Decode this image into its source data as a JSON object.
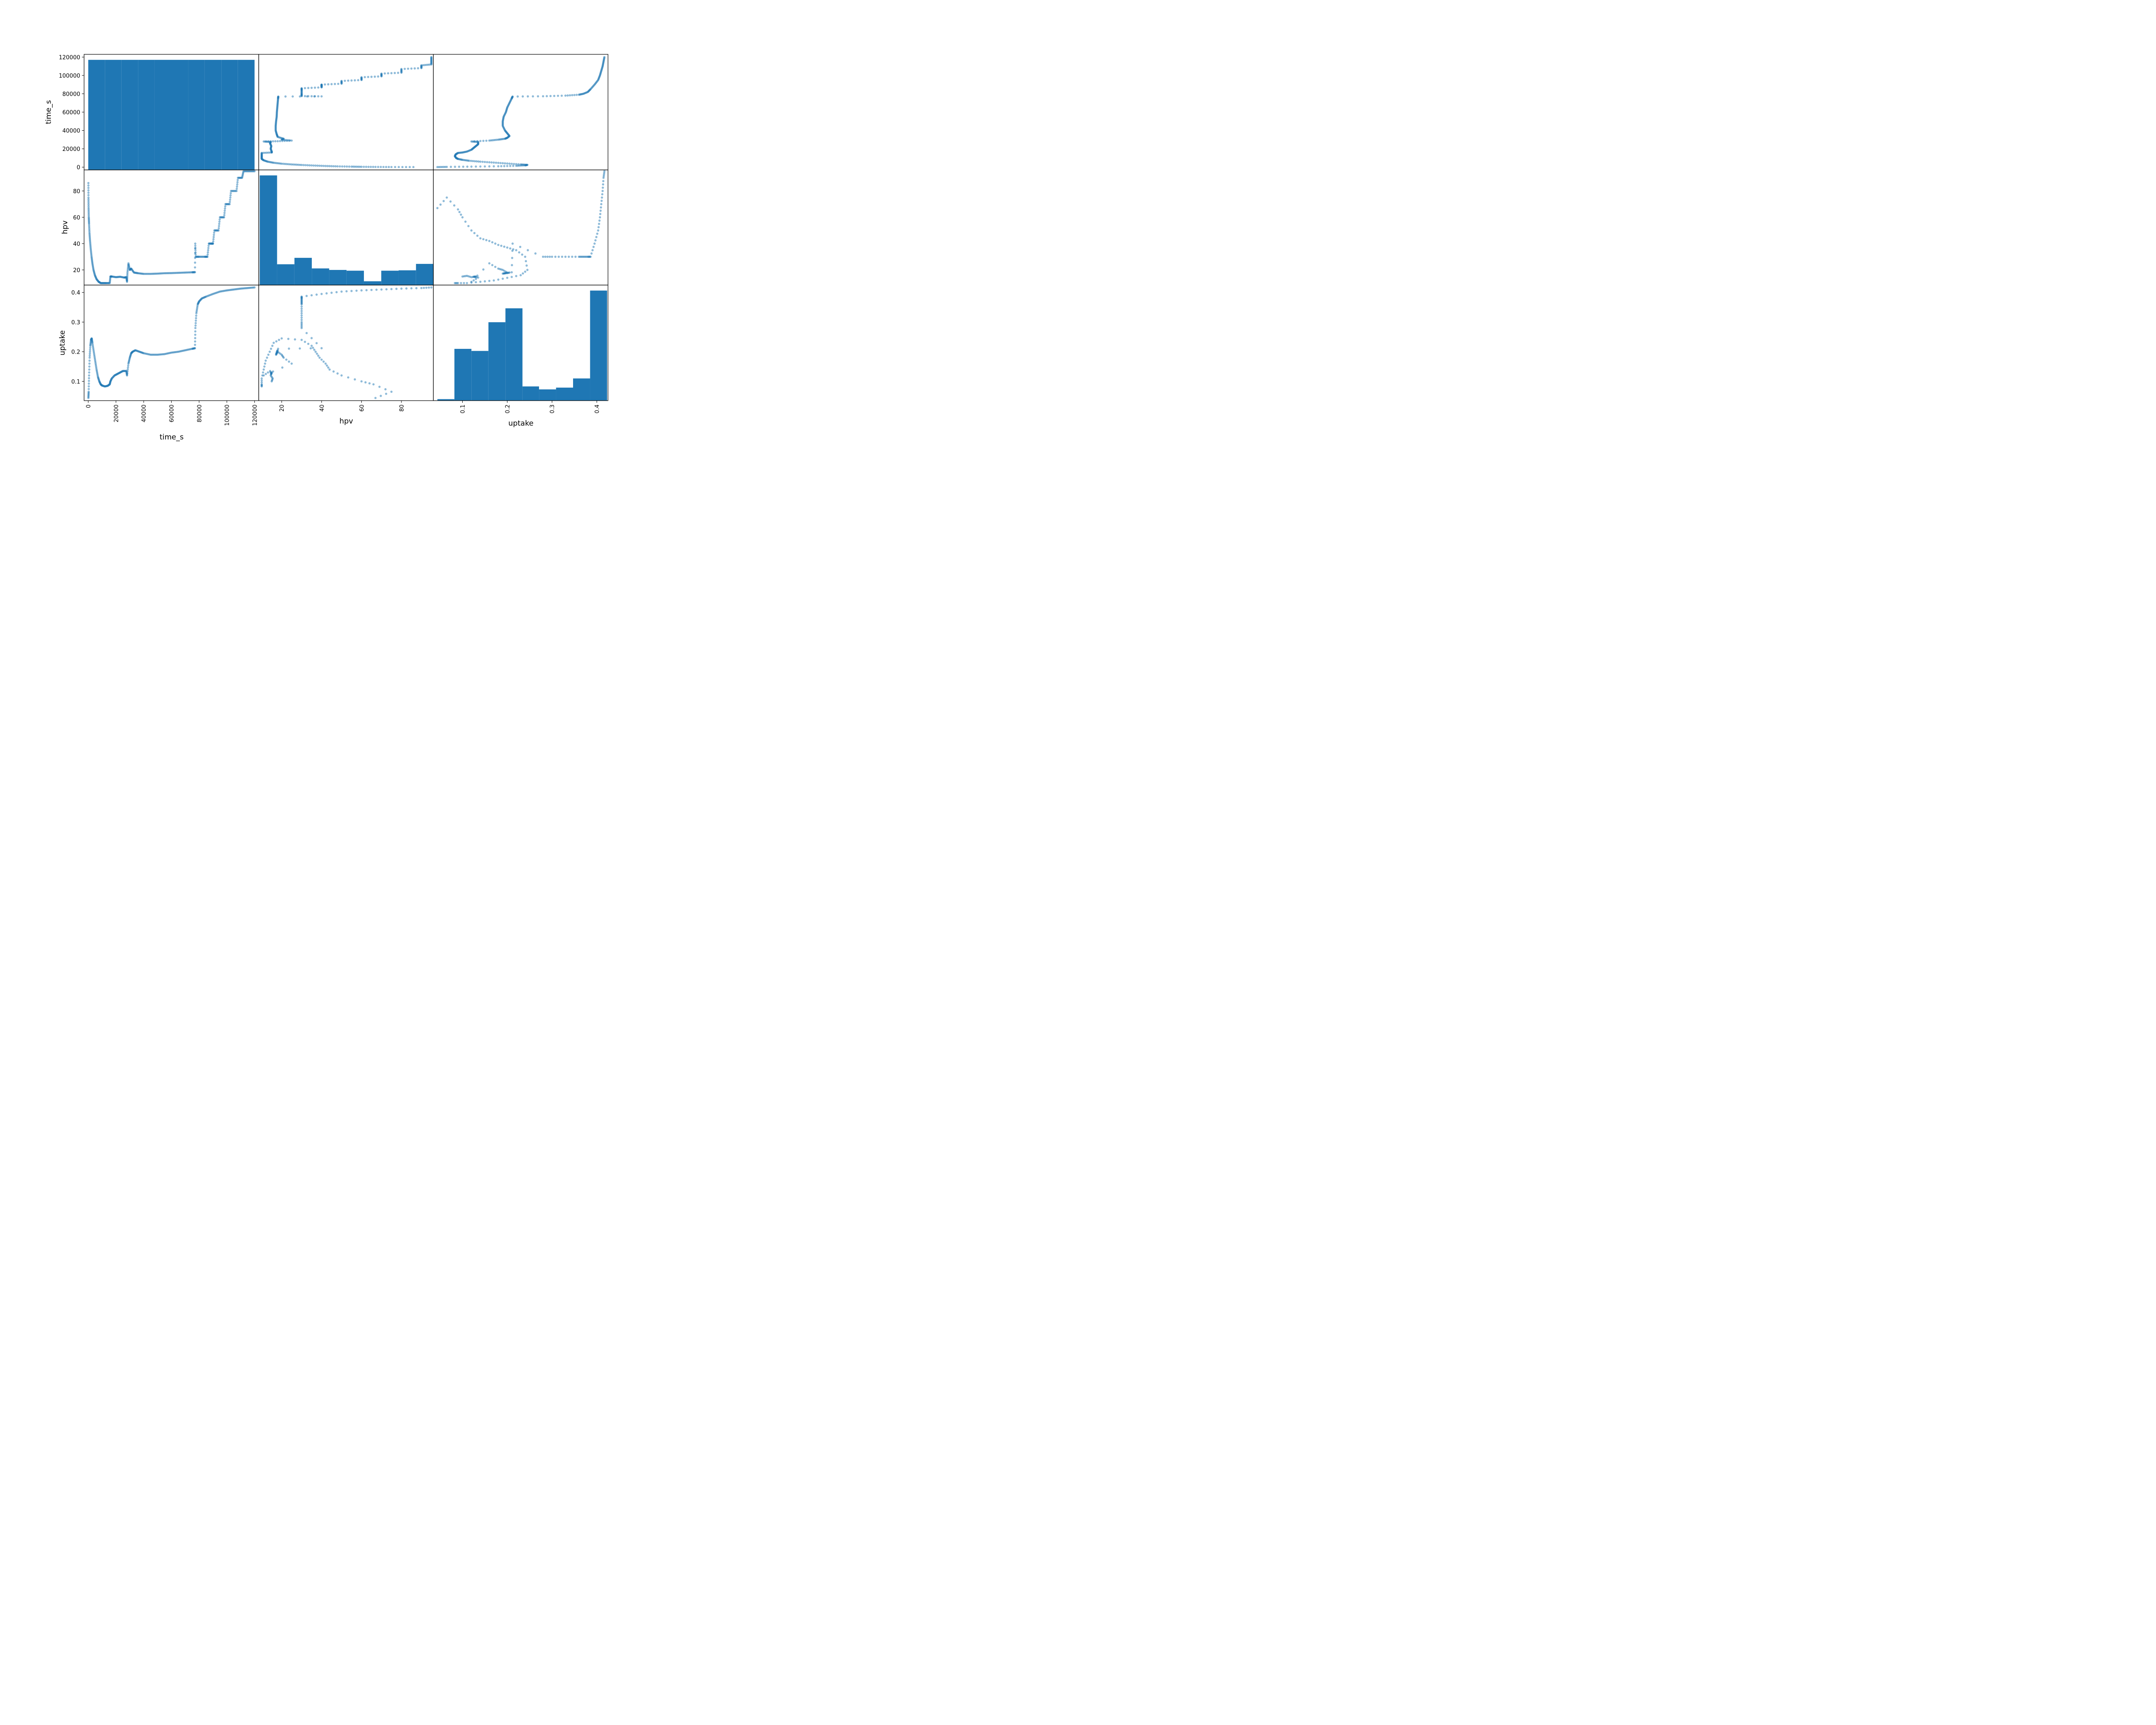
{
  "chart_data": {
    "type": "scatter",
    "kind": "scatter_matrix",
    "variables": [
      "time_s",
      "hpv",
      "uptake"
    ],
    "color": "#1f77b4",
    "point_alpha": 0.5,
    "grid": false,
    "axis_ranges": {
      "time_s": [
        -3000,
        123000
      ],
      "hpv": [
        8.5,
        96
      ],
      "uptake": [
        0.035,
        0.425
      ]
    },
    "ticks": {
      "time_s": {
        "values": [
          0,
          20000,
          40000,
          60000,
          80000,
          100000,
          120000
        ],
        "labels": [
          "0",
          "20000",
          "40000",
          "60000",
          "80000",
          "100000",
          "120000"
        ]
      },
      "hpv": {
        "values": [
          20,
          40,
          60,
          80
        ],
        "labels": [
          "20",
          "40",
          "60",
          "80"
        ]
      },
      "uptake": {
        "values": [
          0.1,
          0.2,
          0.3,
          0.4
        ],
        "labels": [
          "0.1",
          "0.2",
          "0.3",
          "0.4"
        ]
      }
    },
    "histograms": {
      "time_s": {
        "edges": [
          0,
          12000,
          24000,
          36000,
          48000,
          60000,
          72000,
          84000,
          96000,
          108000,
          120000
        ],
        "counts": [
          1000,
          1000,
          1000,
          1000,
          1000,
          1000,
          1000,
          1000,
          1000,
          1000
        ]
      },
      "hpv": {
        "edges": [
          9,
          17.7,
          26.4,
          35.1,
          43.8,
          52.5,
          61.2,
          69.9,
          78.6,
          87.3,
          96
        ],
        "counts": [
          2900,
          550,
          720,
          440,
          400,
          380,
          100,
          380,
          390,
          560
        ]
      },
      "uptake": {
        "edges": [
          0.044,
          0.082,
          0.12,
          0.158,
          0.196,
          0.234,
          0.271,
          0.309,
          0.347,
          0.385,
          0.423
        ],
        "counts": [
          5,
          175,
          168,
          265,
          312,
          48,
          38,
          44,
          75,
          372
        ]
      }
    },
    "curves": {
      "time_vs_hpv": [
        [
          100,
          86
        ],
        [
          150,
          75
        ],
        [
          250,
          67
        ],
        [
          400,
          60
        ],
        [
          600,
          55
        ],
        [
          900,
          48
        ],
        [
          1300,
          42
        ],
        [
          1800,
          36
        ],
        [
          2400,
          30
        ],
        [
          3000,
          25
        ],
        [
          3800,
          20
        ],
        [
          4800,
          16
        ],
        [
          6000,
          13
        ],
        [
          7500,
          11
        ],
        [
          9000,
          10
        ],
        [
          11000,
          10
        ],
        [
          13000,
          10
        ],
        [
          15500,
          10
        ],
        [
          16000,
          15
        ],
        [
          17000,
          15
        ],
        [
          20000,
          14.5
        ],
        [
          23000,
          14.8
        ],
        [
          26000,
          14.2
        ],
        [
          27500,
          14.5
        ],
        [
          28000,
          11
        ],
        [
          28300,
          18
        ],
        [
          29000,
          25
        ],
        [
          30000,
          20
        ],
        [
          31000,
          21
        ],
        [
          33000,
          18
        ],
        [
          36000,
          17.5
        ],
        [
          40000,
          17
        ],
        [
          45000,
          17
        ],
        [
          50000,
          17.2
        ],
        [
          55000,
          17.5
        ],
        [
          60000,
          17.6
        ],
        [
          65000,
          17.8
        ],
        [
          70000,
          18
        ],
        [
          75000,
          18.2
        ],
        [
          77000,
          18.3
        ],
        [
          77200,
          40
        ],
        [
          77500,
          30
        ],
        [
          80000,
          30
        ],
        [
          84000,
          30
        ],
        [
          86000,
          30
        ],
        [
          87000,
          40
        ],
        [
          89000,
          40
        ],
        [
          90000,
          40
        ],
        [
          91000,
          50
        ],
        [
          94000,
          50
        ],
        [
          95000,
          60
        ],
        [
          98000,
          60
        ],
        [
          99000,
          70
        ],
        [
          102000,
          70
        ],
        [
          103000,
          80
        ],
        [
          107000,
          80
        ],
        [
          108000,
          90
        ],
        [
          111000,
          90
        ],
        [
          112000,
          95
        ],
        [
          116000,
          95
        ],
        [
          120000,
          95
        ]
      ],
      "time_vs_uptake": [
        [
          100,
          0.044
        ],
        [
          300,
          0.065
        ],
        [
          600,
          0.12
        ],
        [
          1000,
          0.18
        ],
        [
          1500,
          0.22
        ],
        [
          2000,
          0.24
        ],
        [
          2500,
          0.245
        ],
        [
          3000,
          0.23
        ],
        [
          4000,
          0.2
        ],
        [
          5000,
          0.17
        ],
        [
          6000,
          0.14
        ],
        [
          7000,
          0.115
        ],
        [
          8000,
          0.1
        ],
        [
          9000,
          0.09
        ],
        [
          10000,
          0.086
        ],
        [
          12000,
          0.083
        ],
        [
          14000,
          0.085
        ],
        [
          15500,
          0.09
        ],
        [
          16000,
          0.1
        ],
        [
          17000,
          0.11
        ],
        [
          19000,
          0.12
        ],
        [
          21000,
          0.125
        ],
        [
          23000,
          0.13
        ],
        [
          25000,
          0.135
        ],
        [
          27500,
          0.135
        ],
        [
          28000,
          0.12
        ],
        [
          29000,
          0.16
        ],
        [
          30000,
          0.18
        ],
        [
          31000,
          0.195
        ],
        [
          32000,
          0.2
        ],
        [
          34000,
          0.205
        ],
        [
          37000,
          0.2
        ],
        [
          40000,
          0.195
        ],
        [
          45000,
          0.19
        ],
        [
          50000,
          0.19
        ],
        [
          55000,
          0.192
        ],
        [
          60000,
          0.197
        ],
        [
          65000,
          0.2
        ],
        [
          70000,
          0.205
        ],
        [
          75000,
          0.21
        ],
        [
          77000,
          0.212
        ],
        [
          77300,
          0.28
        ],
        [
          78000,
          0.33
        ],
        [
          79000,
          0.36
        ],
        [
          80000,
          0.37
        ],
        [
          82000,
          0.38
        ],
        [
          85000,
          0.386
        ],
        [
          90000,
          0.395
        ],
        [
          95000,
          0.403
        ],
        [
          100000,
          0.407
        ],
        [
          105000,
          0.41
        ],
        [
          110000,
          0.413
        ],
        [
          115000,
          0.415
        ],
        [
          120000,
          0.417
        ]
      ],
      "uptake_vs_hpv_outer": [
        [
          0.044,
          67
        ],
        [
          0.065,
          75
        ],
        [
          0.09,
          66
        ],
        [
          0.1,
          60
        ],
        [
          0.12,
          50
        ],
        [
          0.14,
          44
        ],
        [
          0.16,
          42
        ],
        [
          0.18,
          39
        ],
        [
          0.2,
          37
        ],
        [
          0.22,
          35
        ],
        [
          0.24,
          30
        ],
        [
          0.245,
          20
        ],
        [
          0.23,
          16
        ],
        [
          0.2,
          14
        ],
        [
          0.17,
          12
        ],
        [
          0.14,
          11
        ],
        [
          0.11,
          10
        ],
        [
          0.09,
          10
        ],
        [
          0.083,
          10
        ]
      ],
      "uptake_vs_hpv_cluster": [
        [
          0.1,
          15
        ],
        [
          0.11,
          15.5
        ],
        [
          0.12,
          14.5
        ],
        [
          0.13,
          15
        ],
        [
          0.125,
          14.8
        ],
        [
          0.135,
          14.2
        ],
        [
          0.12,
          11
        ],
        [
          0.16,
          25
        ],
        [
          0.18,
          21
        ],
        [
          0.19,
          20
        ],
        [
          0.2,
          18
        ],
        [
          0.195,
          17.5
        ],
        [
          0.19,
          17.2
        ],
        [
          0.2,
          17.6
        ],
        [
          0.205,
          18
        ]
      ],
      "uptake_vs_hpv_upper": [
        [
          0.21,
          18.2
        ],
        [
          0.212,
          40
        ],
        [
          0.28,
          30
        ],
        [
          0.3,
          30
        ],
        [
          0.33,
          30
        ],
        [
          0.36,
          30
        ],
        [
          0.37,
          30
        ],
        [
          0.38,
          30
        ],
        [
          0.386,
          30
        ],
        [
          0.395,
          40
        ],
        [
          0.403,
          50
        ],
        [
          0.407,
          60
        ],
        [
          0.41,
          70
        ],
        [
          0.413,
          80
        ],
        [
          0.415,
          90
        ],
        [
          0.417,
          95
        ]
      ]
    }
  },
  "labels": {
    "time_s": "time_s",
    "hpv": "hpv",
    "uptake": "uptake"
  }
}
